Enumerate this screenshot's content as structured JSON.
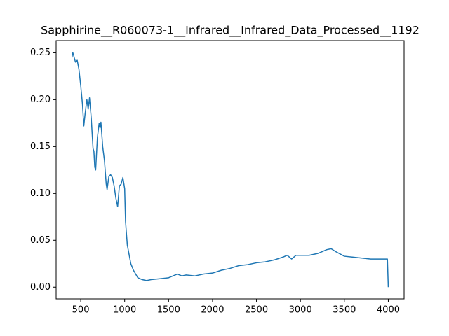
{
  "chart_data": {
    "type": "line",
    "title": "Sapphirine__R060073-1__Infrared__Infrared_Data_Processed__1192",
    "color": "#1f77b4",
    "grid": false,
    "xlim": [
      220,
      4180
    ],
    "ylim": [
      -0.0125,
      0.263
    ],
    "xticks": [
      500,
      1000,
      1500,
      2000,
      2500,
      3000,
      3500,
      4000
    ],
    "yticks": [
      {
        "value": 0,
        "label": "0.00"
      },
      0.05,
      {
        "value": 0.1,
        "label": "0.10"
      },
      0.15,
      {
        "value": 0.2,
        "label": "0.20"
      },
      0.25
    ],
    "x": [
      400,
      410,
      420,
      440,
      460,
      480,
      500,
      520,
      535,
      550,
      570,
      585,
      600,
      620,
      640,
      650,
      660,
      670,
      690,
      710,
      720,
      730,
      750,
      770,
      790,
      800,
      820,
      840,
      860,
      880,
      900,
      920,
      940,
      960,
      980,
      1000,
      1010,
      1030,
      1050,
      1070,
      1100,
      1150,
      1200,
      1250,
      1300,
      1400,
      1500,
      1550,
      1600,
      1650,
      1700,
      1800,
      1900,
      2000,
      2100,
      2150,
      2200,
      2300,
      2400,
      2500,
      2600,
      2700,
      2800,
      2850,
      2900,
      2950,
      3000,
      3100,
      3200,
      3300,
      3350,
      3400,
      3500,
      3600,
      3700,
      3800,
      3900,
      3990,
      4000
    ],
    "values": [
      0.245,
      0.25,
      0.247,
      0.24,
      0.242,
      0.232,
      0.215,
      0.195,
      0.172,
      0.185,
      0.2,
      0.19,
      0.202,
      0.18,
      0.148,
      0.145,
      0.128,
      0.125,
      0.16,
      0.175,
      0.17,
      0.176,
      0.15,
      0.135,
      0.11,
      0.104,
      0.118,
      0.12,
      0.117,
      0.108,
      0.095,
      0.086,
      0.108,
      0.11,
      0.117,
      0.105,
      0.07,
      0.045,
      0.035,
      0.025,
      0.018,
      0.01,
      0.008,
      0.007,
      0.008,
      0.009,
      0.01,
      0.012,
      0.014,
      0.012,
      0.013,
      0.012,
      0.014,
      0.015,
      0.018,
      0.019,
      0.02,
      0.023,
      0.024,
      0.026,
      0.027,
      0.029,
      0.032,
      0.034,
      0.03,
      0.034,
      0.034,
      0.034,
      0.036,
      0.04,
      0.041,
      0.038,
      0.033,
      0.032,
      0.031,
      0.03,
      0.03,
      0.03,
      0.0
    ]
  }
}
